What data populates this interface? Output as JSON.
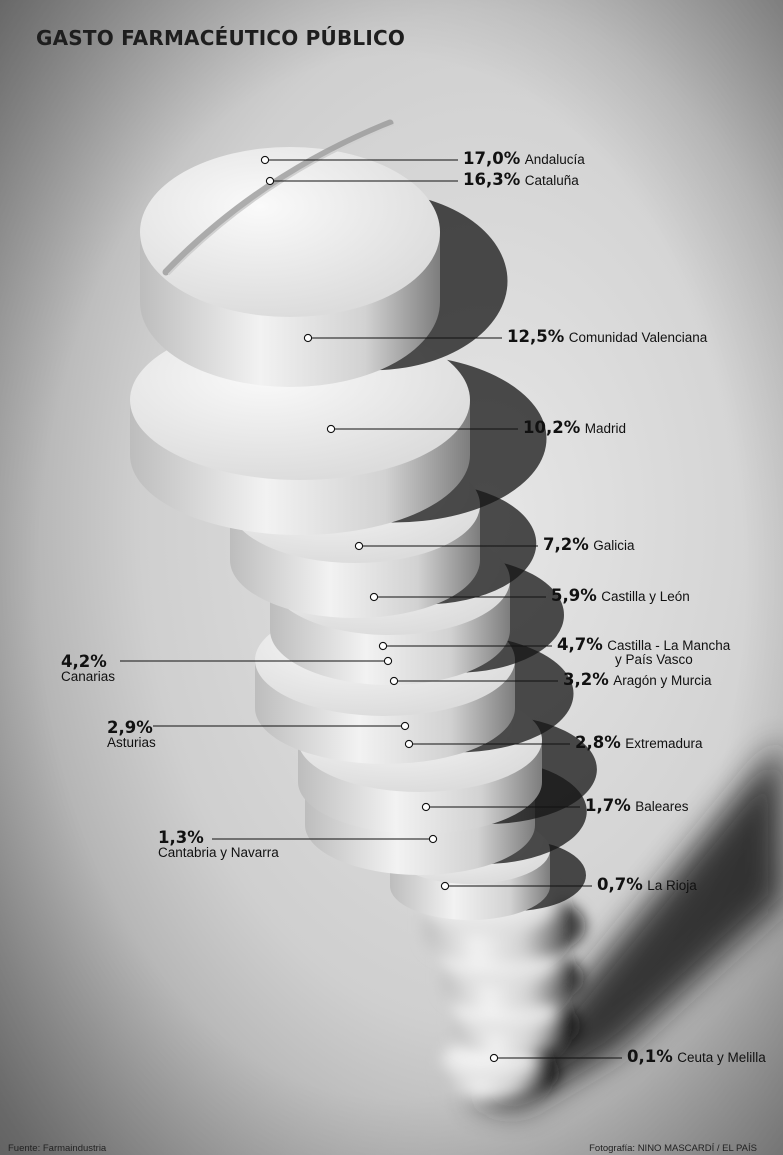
{
  "title": "GASTO FARMACÉUTICO PÚBLICO",
  "chart_data": {
    "type": "bar",
    "title": "GASTO FARMACÉUTICO PÚBLICO",
    "unit": "%",
    "categories": [
      "Andalucía",
      "Cataluña",
      "Comunidad Valenciana",
      "Madrid",
      "Galicia",
      "Castilla y León",
      "Castilla - La Mancha y País Vasco",
      "Canarias",
      "Aragón y Murcia",
      "Asturias",
      "Extremadura",
      "Baleares",
      "Cantabria y Navarra",
      "La Rioja",
      "Ceuta y Melilla"
    ],
    "values": [
      17.0,
      16.3,
      12.5,
      10.2,
      7.2,
      5.9,
      4.7,
      4.2,
      3.2,
      2.9,
      2.8,
      1.7,
      1.3,
      0.7,
      0.1
    ],
    "labels": [
      {
        "pct": "17,0%",
        "name": "Andalucía"
      },
      {
        "pct": "16,3%",
        "name": "Cataluña"
      },
      {
        "pct": "12,5%",
        "name": "Comunidad Valenciana"
      },
      {
        "pct": "10,2%",
        "name": "Madrid"
      },
      {
        "pct": "7,2%",
        "name": "Galicia"
      },
      {
        "pct": "5,9%",
        "name": "Castilla y León"
      },
      {
        "pct": "4,7%",
        "name": "Castilla - La Mancha",
        "name2": "y País Vasco"
      },
      {
        "pct": "4,2%",
        "name": "Canarias"
      },
      {
        "pct": "3,2%",
        "name": "Aragón y Murcia"
      },
      {
        "pct": "2,9%",
        "name": "Asturias"
      },
      {
        "pct": "2,8%",
        "name": "Extremadura"
      },
      {
        "pct": "1,7%",
        "name": "Baleares"
      },
      {
        "pct": "1,3%",
        "name": "Cantabria y Navarra"
      },
      {
        "pct": "0,7%",
        "name": "La Rioja"
      },
      {
        "pct": "0,1%",
        "name": "Ceuta y Melilla"
      }
    ]
  },
  "footer": {
    "source": "Fuente: Farmaindustria",
    "photo_credit": "Fotografía: NINO MASCARDÍ / EL PAÍS"
  }
}
